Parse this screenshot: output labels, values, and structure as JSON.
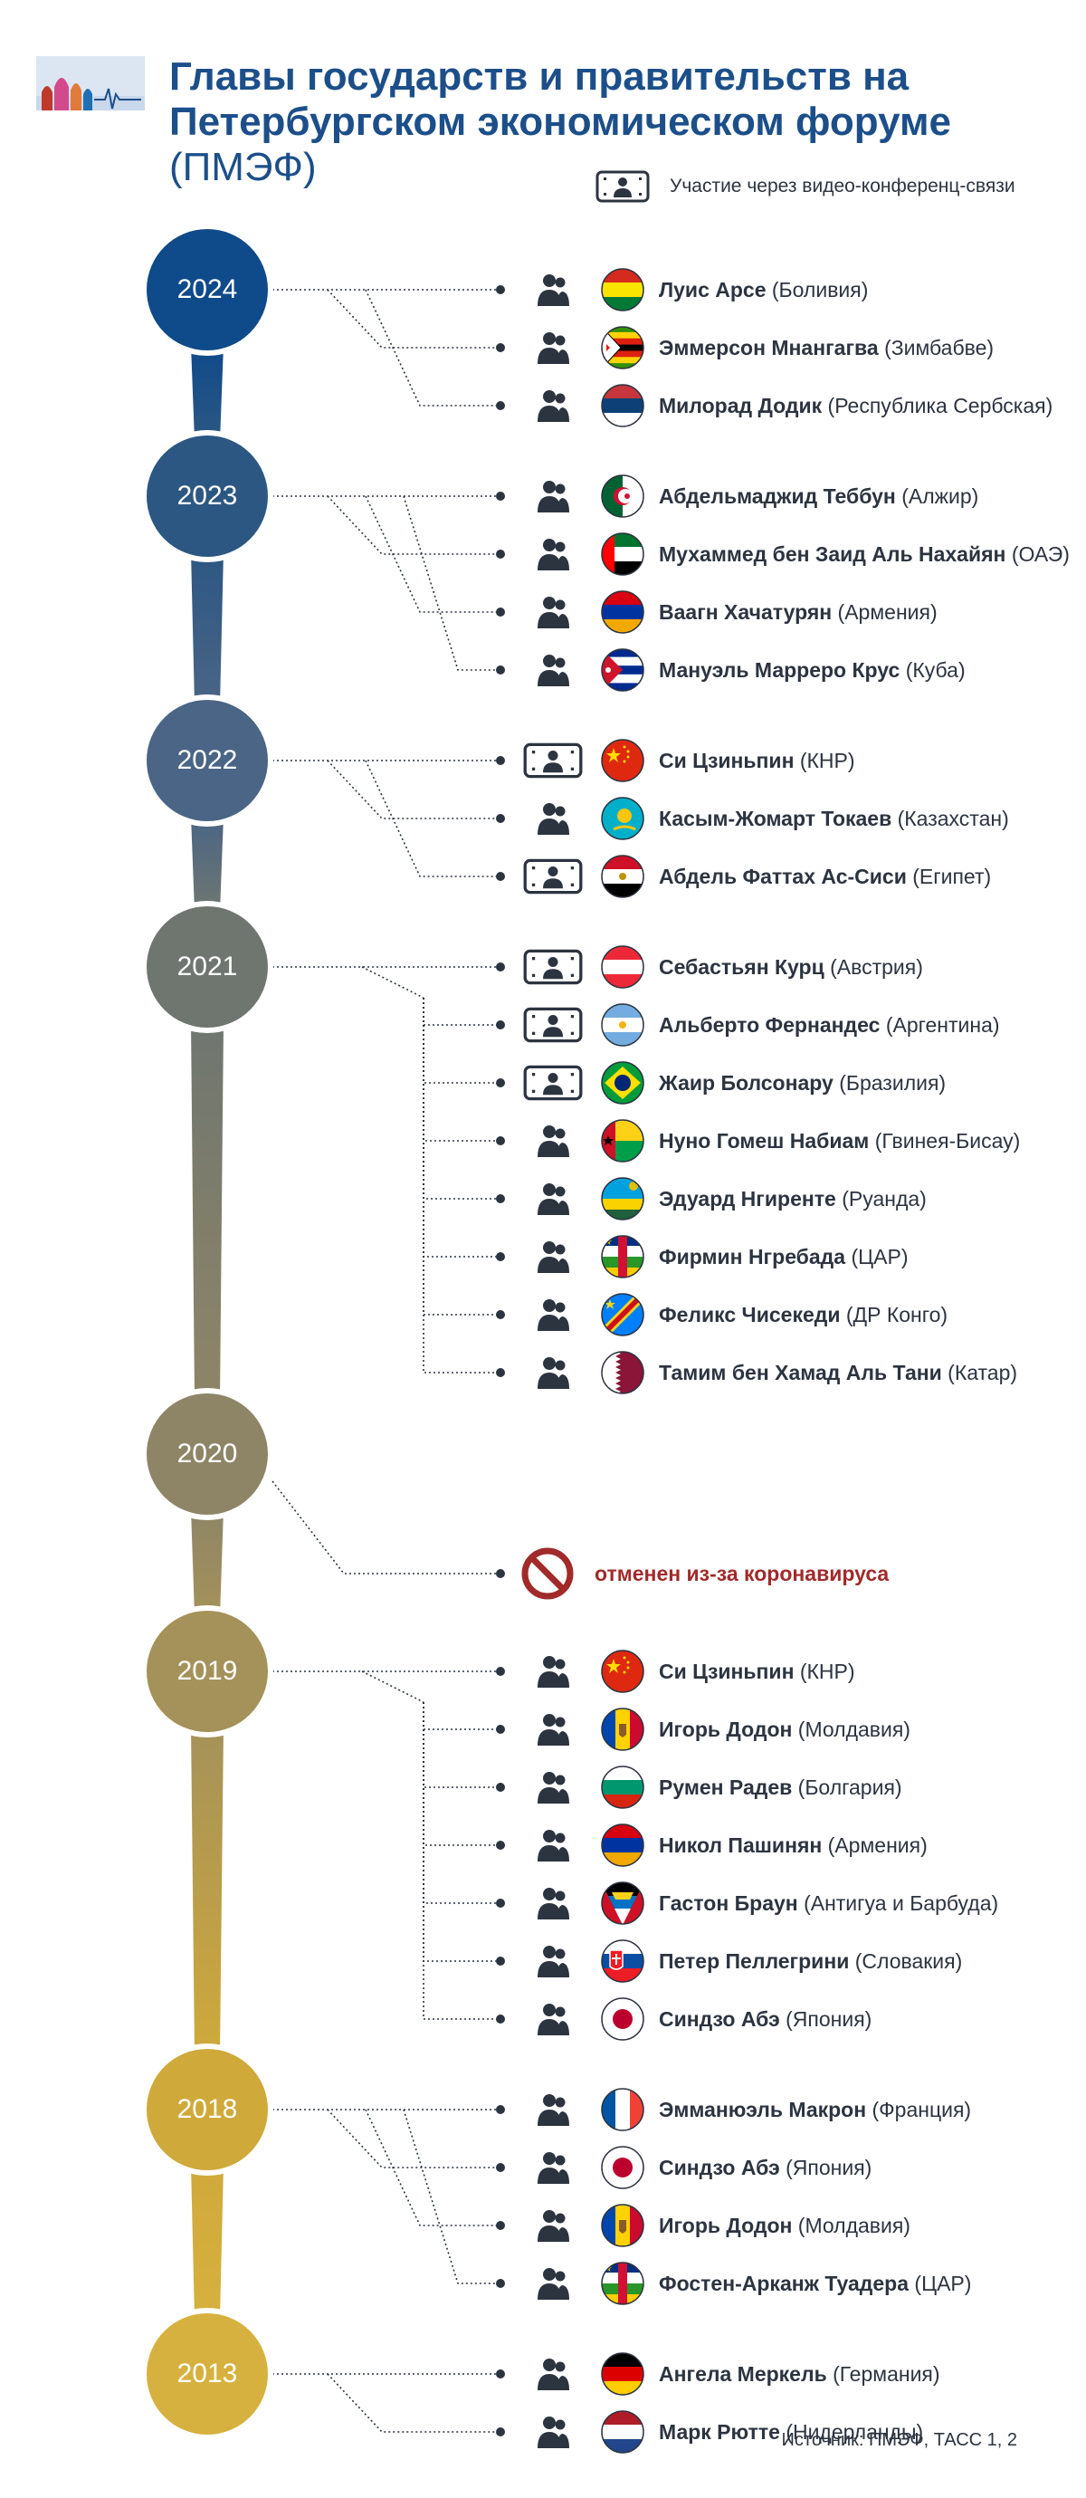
{
  "header": {
    "title": "Главы государств и правительств на Петербургском экономическом форуме",
    "title_abbr": "(ПМЭФ)",
    "legend_label": "Участие через видео-конференц-связи"
  },
  "colors": {
    "title": "#1c4f8a",
    "cancelled": "#a12a2a",
    "text": "#2c3440"
  },
  "icons": {
    "in_person": "person-icon",
    "video": "video-conference-icon",
    "cancelled": "prohibited-icon"
  },
  "years": [
    {
      "year": "2024",
      "color": "#0f4a8a",
      "participants": [
        {
          "name": "Луис Арсе",
          "country": "(Боливия)",
          "flag": "bolivia",
          "video": false
        },
        {
          "name": "Эммерсон Мнангагва",
          "country": "(Зимбабве)",
          "flag": "zimbabwe",
          "video": false
        },
        {
          "name": "Милорад Додик",
          "country": "(Республика Сербская)",
          "flag": "srpska",
          "video": false
        }
      ]
    },
    {
      "year": "2023",
      "color": "#2c5783",
      "participants": [
        {
          "name": "Абдельмаджид Теббун",
          "country": "(Алжир)",
          "flag": "algeria",
          "video": false
        },
        {
          "name": "Мухаммед бен Заид Аль Нахайян",
          "country": "(ОАЭ)",
          "flag": "uae",
          "video": false
        },
        {
          "name": "Ваагн Хачатурян",
          "country": "(Армения)",
          "flag": "armenia",
          "video": false
        },
        {
          "name": "Мануэль Марреро Крус",
          "country": "(Куба)",
          "flag": "cuba",
          "video": false
        }
      ]
    },
    {
      "year": "2022",
      "color": "#4a6585",
      "participants": [
        {
          "name": "Си Цзиньпин",
          "country": "(КНР)",
          "flag": "china",
          "video": true
        },
        {
          "name": "Касым-Жомарт Токаев",
          "country": "(Казахстан)",
          "flag": "kazakhstan",
          "video": false
        },
        {
          "name": "Абдель Фаттах Ас-Сиси",
          "country": "(Египет)",
          "flag": "egypt",
          "video": true
        }
      ]
    },
    {
      "year": "2021",
      "color": "#6f7670",
      "participants": [
        {
          "name": "Себастьян Курц",
          "country": "(Австрия)",
          "flag": "austria",
          "video": true
        },
        {
          "name": "Альберто Фернандес",
          "country": "(Аргентина)",
          "flag": "argentina",
          "video": true
        },
        {
          "name": "Жаир Болсонару",
          "country": "(Бразилия)",
          "flag": "brazil",
          "video": true
        },
        {
          "name": "Нуно Гомеш Набиам",
          "country": "(Гвинея-Бисау)",
          "flag": "guinea-bissau",
          "video": false
        },
        {
          "name": "Эдуард Нгиренте",
          "country": "(Руанда)",
          "flag": "rwanda",
          "video": false
        },
        {
          "name": "Фирмин Нгребада",
          "country": "(ЦАР)",
          "flag": "car",
          "video": false
        },
        {
          "name": "Феликс Чисекеди",
          "country": "(ДР Конго)",
          "flag": "drc",
          "video": false
        },
        {
          "name": "Тамим бен Хамад Аль Тани",
          "country": "(Катар)",
          "flag": "qatar",
          "video": false
        }
      ]
    },
    {
      "year": "2020",
      "color": "#8e8567",
      "cancelled": "отменен из-за коронавируса",
      "participants": []
    },
    {
      "year": "2019",
      "color": "#a5925a",
      "participants": [
        {
          "name": "Си Цзиньпин",
          "country": "(КНР)",
          "flag": "china",
          "video": false
        },
        {
          "name": "Игорь Додон",
          "country": "(Молдавия)",
          "flag": "moldova",
          "video": false
        },
        {
          "name": "Румен Радев",
          "country": "(Болгария)",
          "flag": "bulgaria",
          "video": false
        },
        {
          "name": "Никол Пашинян",
          "country": "(Армения)",
          "flag": "armenia",
          "video": false
        },
        {
          "name": "Гастон Браун",
          "country": "(Антигуа и Барбуда)",
          "flag": "antigua",
          "video": false
        },
        {
          "name": "Петер Пеллегрини",
          "country": "(Словакия)",
          "flag": "slovakia",
          "video": false
        },
        {
          "name": "Синдзо Абэ",
          "country": "(Япония)",
          "flag": "japan",
          "video": false
        }
      ]
    },
    {
      "year": "2018",
      "color": "#cfa93a",
      "participants": [
        {
          "name": "Эмманюэль Макрон",
          "country": "(Франция)",
          "flag": "france",
          "video": false
        },
        {
          "name": "Синдзо Абэ",
          "country": "(Япония)",
          "flag": "japan",
          "video": false
        },
        {
          "name": "Игорь Додон",
          "country": "(Молдавия)",
          "flag": "moldova",
          "video": false
        },
        {
          "name": "Фостен-Арканж Туадера",
          "country": "(ЦАР)",
          "flag": "car",
          "video": false
        }
      ]
    },
    {
      "year": "2013",
      "color": "#d7b13f",
      "participants": [
        {
          "name": "Ангела Меркель",
          "country": "(Германия)",
          "flag": "germany",
          "video": false
        },
        {
          "name": "Марк Рютте",
          "country": "(Нидерланды)",
          "flag": "netherlands",
          "video": false
        }
      ]
    }
  ],
  "footer": {
    "source": "Источник: ПМЭФ, ТАСС 1, 2"
  }
}
